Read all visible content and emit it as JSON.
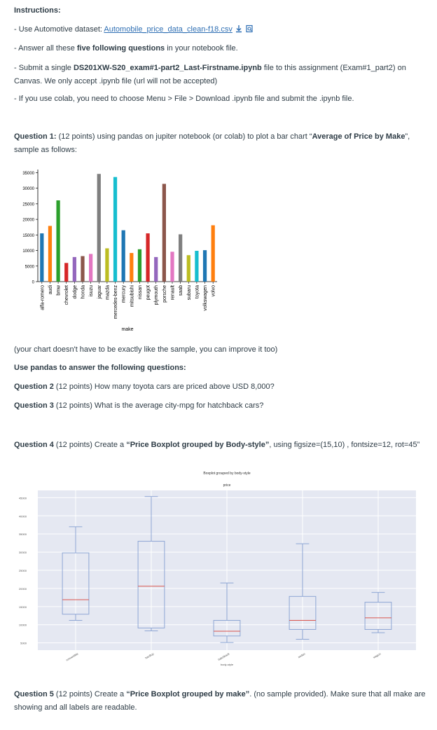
{
  "instructions": {
    "heading": "Instructions:",
    "line1_prefix": "- Use Automotive dataset: ",
    "line1_link": "Automobile_price_data_clean-f18.csv",
    "line2_prefix": "- Answer all these ",
    "line2_bold": "five following questions",
    "line2_suffix": " in your notebook file.",
    "line3_prefix": "- Submit a single ",
    "line3_bold": "DS201XW-S20_exam#1-part2_Last-Firstname.ipynb",
    "line3_suffix": " file to this assignment (Exam#1_part2) on Canvas. We only accept .ipynb file (url will not be accepted)",
    "line4": "- If you use colab, you need to choose Menu > File > Download .ipynb file and submit the .ipynb file."
  },
  "q1": {
    "label": "Question 1:",
    "text_before": " (12 points) using pandas on jupiter notebook (or colab) to plot a bar chart “",
    "bold": "Average of Price by Make",
    "text_after": "”, sample as follows:"
  },
  "note": "(your chart doesn't have to be exactly like the sample, you can improve it too)",
  "pandas_line": "Use pandas to answer the following questions:",
  "q2": {
    "label": "Question 2",
    "text": " (12 points) How many toyota cars are priced above USD 8,000?"
  },
  "q3": {
    "label": "Question 3",
    "text": " (12 points) What is the average city-mpg for hatchback cars?"
  },
  "q4": {
    "label": "Question 4",
    "text_before": " (12 points) Create a ",
    "bold": "“Price Boxplot grouped by Body-style”",
    "text_after": ", using figsize=(15,10) , fontsize=12, rot=45”"
  },
  "q5": {
    "label": "Question 5",
    "text_before": " (12 points) Create a ",
    "bold": "“Price Boxplot grouped by make”",
    "text_after": ". (no sample provided). Make sure that all make are showing and all labels are readable."
  },
  "chart_data": [
    {
      "type": "bar",
      "xlabel": "make",
      "ylabel": "",
      "title": "",
      "ylim": [
        0,
        36000
      ],
      "yticks": [
        0,
        5000,
        10000,
        15000,
        20000,
        25000,
        30000,
        35000
      ],
      "grid": false,
      "categories": [
        "alfa-romero",
        "audi",
        "bmw",
        "chevrolet",
        "dodge",
        "honda",
        "isuzu",
        "jaguar",
        "mazda",
        "mercedes-benz",
        "mercury",
        "mitsubishi",
        "nissan",
        "peugot",
        "plymouth",
        "porsche",
        "renault",
        "saab",
        "subaru",
        "toyota",
        "volkswagen",
        "volvo"
      ],
      "values": [
        15500,
        17900,
        26100,
        6000,
        7900,
        8200,
        8900,
        34600,
        10700,
        33600,
        16500,
        9200,
        10400,
        15500,
        7900,
        31400,
        9600,
        15200,
        8500,
        9900,
        10100,
        18100
      ],
      "colors": [
        "#1f77b4",
        "#ff7f0e",
        "#2ca02c",
        "#d62728",
        "#9467bd",
        "#8c564b",
        "#e377c2",
        "#7f7f7f",
        "#bcbd22",
        "#17becf",
        "#1f77b4",
        "#ff7f0e",
        "#2ca02c",
        "#d62728",
        "#9467bd",
        "#8c564b",
        "#e377c2",
        "#7f7f7f",
        "#bcbd22",
        "#17becf",
        "#1f77b4",
        "#ff7f0e"
      ]
    },
    {
      "type": "boxplot",
      "title": "Boxplot grouped by body-style",
      "subtitle": "price",
      "xlabel": "body-style",
      "ylim": [
        3000,
        47000
      ],
      "yticks": [
        5000,
        10000,
        15000,
        20000,
        25000,
        30000,
        35000,
        40000,
        45000
      ],
      "grid": true,
      "categories": [
        "convertible",
        "hardtop",
        "hatchback",
        "sedan",
        "wagon"
      ],
      "series": [
        {
          "whisker_low": 11200,
          "q1": 12900,
          "median": 16900,
          "q3": 29800,
          "whisker_high": 37000
        },
        {
          "whisker_low": 8300,
          "q1": 9100,
          "median": 20600,
          "q3": 33000,
          "whisker_high": 45300
        },
        {
          "whisker_low": 5100,
          "q1": 6900,
          "median": 8200,
          "q3": 11200,
          "whisker_high": 21500
        },
        {
          "whisker_low": 6000,
          "q1": 8700,
          "median": 11200,
          "q3": 17800,
          "whisker_high": 32300
        },
        {
          "whisker_low": 7800,
          "q1": 8700,
          "median": 11900,
          "q3": 16200,
          "whisker_high": 18900
        }
      ],
      "box_color": "#8ea6d4",
      "median_color": "#d9544d",
      "background": "#e5e8f2"
    }
  ]
}
